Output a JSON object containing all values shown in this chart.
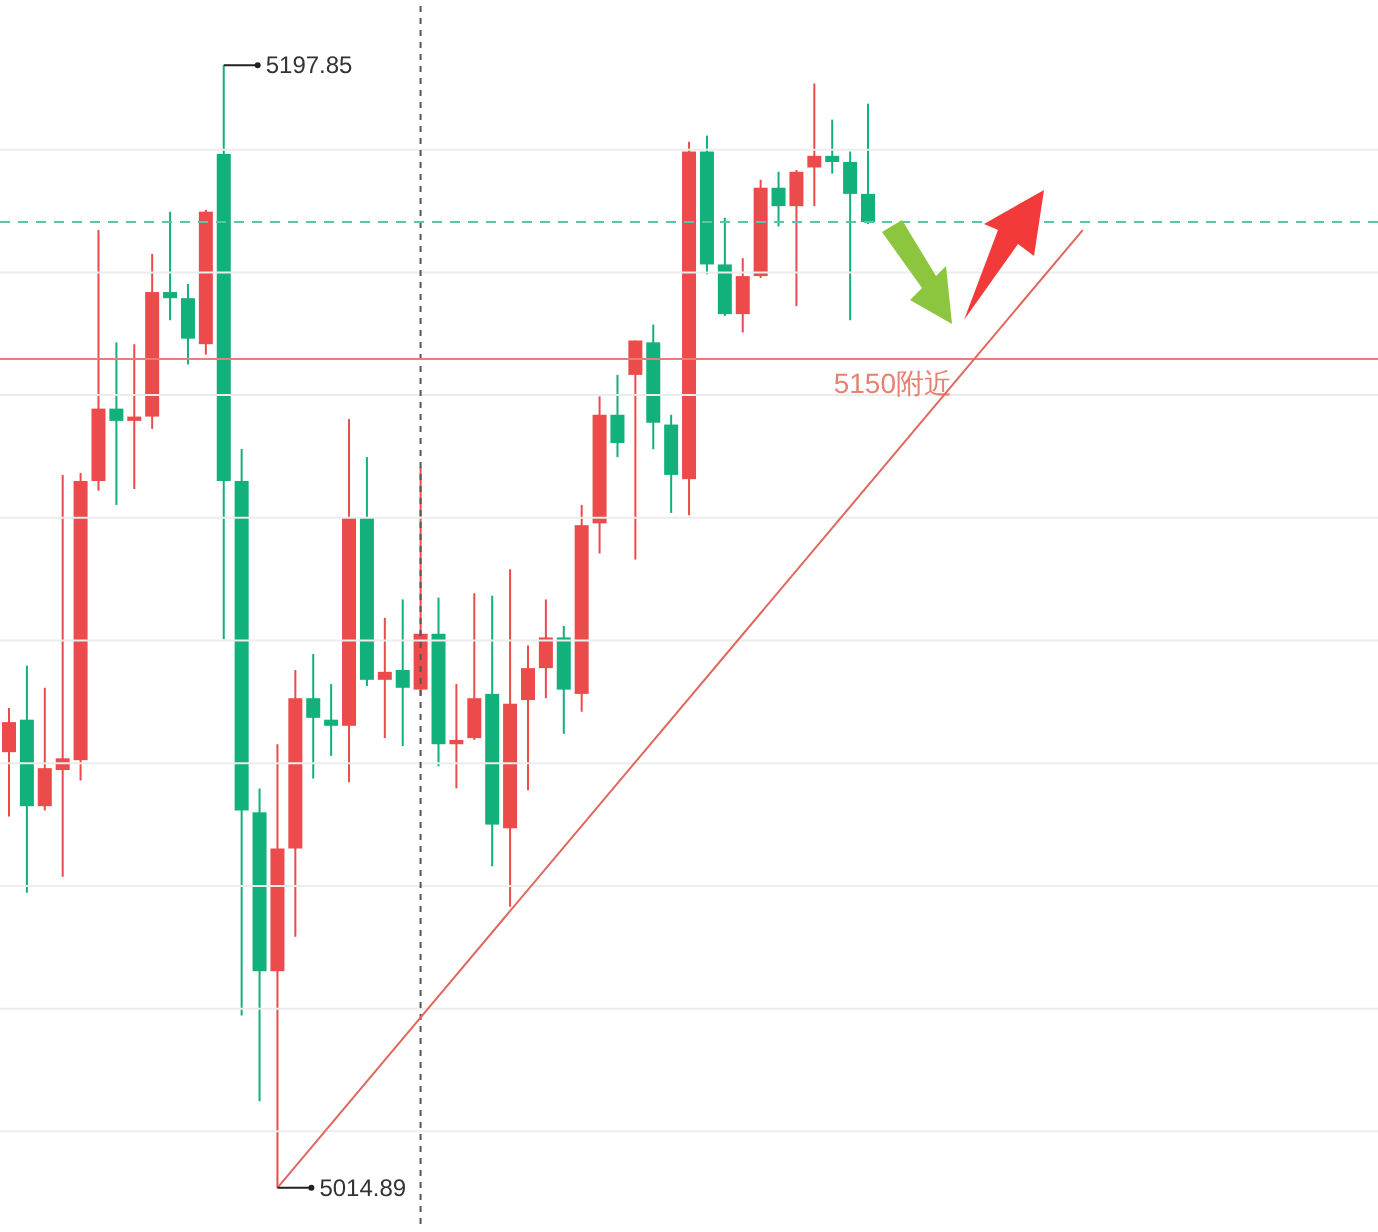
{
  "chart_data": {
    "type": "candlestick",
    "categories": [
      null,
      null,
      null,
      null,
      null,
      null,
      null,
      null,
      null,
      null,
      null,
      null,
      null,
      null,
      null,
      null,
      null,
      null,
      null,
      null,
      null,
      null,
      null,
      null,
      null,
      null,
      null,
      null,
      null,
      null,
      null,
      null,
      null,
      null,
      null,
      null,
      null,
      null,
      null,
      null,
      null,
      null,
      null,
      null,
      null,
      null,
      null,
      null,
      null,
      null,
      null,
      null,
      null,
      null,
      null,
      null,
      null,
      null,
      null,
      null,
      null,
      null,
      null,
      null,
      null,
      null,
      null,
      null,
      null,
      null,
      null,
      null,
      null,
      null,
      null,
      null,
      null
    ],
    "ohlc": [
      [
        5085.9,
        5093.1,
        5075.4,
        5090.8
      ],
      [
        5091.2,
        5100.0,
        5063.0,
        5077.1
      ],
      [
        5077.1,
        5096.4,
        5076.4,
        5083.3
      ],
      [
        5083.0,
        5131.1,
        5065.6,
        5084.9
      ],
      [
        5084.6,
        5131.4,
        5081.3,
        5130.1
      ],
      [
        5130.1,
        5171.0,
        5128.5,
        5141.9
      ],
      [
        5141.9,
        5152.7,
        5126.2,
        5139.9
      ],
      [
        5139.9,
        5152.4,
        5128.8,
        5140.6
      ],
      [
        5140.6,
        5167.1,
        5138.6,
        5160.9
      ],
      [
        5160.9,
        5174.0,
        5156.3,
        5159.9
      ],
      [
        5159.9,
        5162.2,
        5149.1,
        5153.3
      ],
      [
        5152.4,
        5174.3,
        5150.7,
        5174.0
      ],
      [
        5183.4,
        5197.85,
        5104.3,
        5130.1
      ],
      [
        5130.1,
        5135.3,
        5043.0,
        5076.4
      ],
      [
        5076.1,
        5080.0,
        5029.0,
        5050.2
      ],
      [
        5050.2,
        5087.2,
        5014.89,
        5070.2
      ],
      [
        5070.2,
        5099.3,
        5055.8,
        5094.7
      ],
      [
        5094.7,
        5101.9,
        5081.6,
        5091.5
      ],
      [
        5091.2,
        5097.0,
        5085.3,
        5090.2
      ],
      [
        5090.2,
        5140.2,
        5081.0,
        5124.2
      ],
      [
        5124.2,
        5134.0,
        5096.7,
        5097.7
      ],
      [
        5097.7,
        5107.8,
        5088.2,
        5099.0
      ],
      [
        5099.3,
        5110.8,
        5086.9,
        5096.4
      ],
      [
        5096.1,
        5132.4,
        5095.1,
        5105.2
      ],
      [
        5105.2,
        5111.1,
        5083.6,
        5087.2
      ],
      [
        5087.2,
        5097.0,
        5080.0,
        5087.9
      ],
      [
        5088.2,
        5111.8,
        5087.9,
        5094.7
      ],
      [
        5095.4,
        5111.4,
        5067.3,
        5074.1
      ],
      [
        5073.5,
        5115.7,
        5060.7,
        5093.8
      ],
      [
        5094.4,
        5103.3,
        5079.7,
        5099.6
      ],
      [
        5099.6,
        5110.8,
        5094.7,
        5104.6
      ],
      [
        5104.6,
        5106.5,
        5088.9,
        5096.1
      ],
      [
        5095.4,
        5126.2,
        5092.5,
        5122.9
      ],
      [
        5123.2,
        5143.9,
        5118.3,
        5140.9
      ],
      [
        5140.9,
        5147.4,
        5134.0,
        5136.3
      ],
      [
        5147.4,
        5153.0,
        5117.3,
        5153.0
      ],
      [
        5152.7,
        5155.6,
        5135.3,
        5139.6
      ],
      [
        5139.3,
        5140.9,
        5124.9,
        5131.1
      ],
      [
        5130.4,
        5185.4,
        5124.5,
        5183.8
      ],
      [
        5183.8,
        5186.4,
        5163.8,
        5165.4
      ],
      [
        5165.4,
        5173.0,
        5157.0,
        5157.3
      ],
      [
        5157.3,
        5166.4,
        5154.3,
        5163.5
      ],
      [
        5163.5,
        5179.2,
        5163.2,
        5177.9
      ],
      [
        5177.9,
        5180.5,
        5171.6,
        5174.9
      ],
      [
        5174.9,
        5180.8,
        5158.6,
        5180.5
      ],
      [
        5181.2,
        5194.9,
        5174.9,
        5183.1
      ],
      [
        5183.1,
        5189.0,
        5180.2,
        5182.1
      ],
      [
        5182.1,
        5183.8,
        5156.3,
        5176.9
      ],
      [
        5176.9,
        5191.6,
        5172.0,
        5172.3
      ],
      null,
      null,
      null,
      null,
      null,
      null,
      null,
      null,
      null,
      null,
      null,
      null,
      null,
      null,
      null,
      null,
      null,
      null,
      null,
      null,
      null,
      null,
      null,
      null,
      null,
      null,
      null,
      null
    ],
    "colors": [
      "#eb4b4b",
      "#12b07a",
      "#eb4b4b",
      "#eb4b4b",
      "#eb4b4b",
      "#eb4b4b",
      "#12b07a",
      "#eb4b4b",
      "#eb4b4b",
      "#12b07a",
      "#12b07a",
      "#eb4b4b",
      "#12b07a",
      "#12b07a",
      "#12b07a",
      "#eb4b4b",
      "#eb4b4b",
      "#12b07a",
      "#12b07a",
      "#eb4b4b",
      "#12b07a",
      "#eb4b4b",
      "#12b07a",
      "#eb4b4b",
      "#12b07a",
      "#eb4b4b",
      "#eb4b4b",
      "#12b07a",
      "#eb4b4b",
      "#eb4b4b",
      "#eb4b4b",
      "#12b07a",
      "#eb4b4b",
      "#eb4b4b",
      "#12b07a",
      "#eb4b4b",
      "#12b07a",
      "#12b07a",
      "#eb4b4b",
      "#12b07a",
      "#12b07a",
      "#eb4b4b",
      "#eb4b4b",
      "#12b07a",
      "#eb4b4b",
      "#eb4b4b",
      "#12b07a",
      "#12b07a",
      "#12b07a",
      null,
      null,
      null,
      null,
      null,
      null,
      null,
      null,
      null,
      null,
      null,
      null,
      null,
      null,
      null,
      null,
      null,
      null,
      null,
      null,
      null,
      null,
      null,
      null,
      null,
      null,
      null,
      null
    ],
    "series": [
      {
        "type": "line",
        "color": "#e0675a",
        "values": [
          null,
          null,
          null,
          null,
          null,
          null,
          null,
          null,
          null,
          null,
          null,
          null,
          null,
          null,
          null,
          5014.9,
          null,
          null,
          null,
          null,
          null,
          null,
          null,
          null,
          null,
          null,
          null,
          null,
          null,
          null,
          null,
          null,
          null,
          null,
          null,
          null,
          null,
          null,
          null,
          null,
          null,
          null,
          null,
          null,
          null,
          null,
          null,
          null,
          null,
          null,
          null,
          null,
          null,
          null,
          null,
          null,
          null,
          null,
          null,
          null,
          5171.0,
          null,
          null,
          null,
          null,
          null,
          null,
          null,
          null,
          null,
          null,
          null,
          null,
          null,
          null,
          null,
          null
        ]
      }
    ],
    "ylim": [
      5009,
      5208.5
    ],
    "yticks": [
      {
        "value": 5184.1,
        "label": null
      },
      {
        "value": 5164.1,
        "label": null
      },
      {
        "value": 5144.1,
        "label": null
      },
      {
        "value": 5124.1,
        "label": null
      },
      {
        "value": 5104.1,
        "label": null
      },
      {
        "value": 5084.1,
        "label": null
      },
      {
        "value": 5064.1,
        "label": null
      },
      {
        "value": 5044.1,
        "label": null
      },
      {
        "value": 5024.1,
        "label": null
      }
    ],
    "tick_labels": false,
    "grid": "y",
    "ref_lines": [
      {
        "axis": "y",
        "value": 5150,
        "label": "5150附近",
        "color": "#e8806f"
      },
      {
        "axis": "y",
        "value": 5172.3,
        "color": "#5cc4a8",
        "line_style": "dashed"
      }
    ],
    "annotations": [
      "5197.85",
      "5014.89"
    ]
  }
}
